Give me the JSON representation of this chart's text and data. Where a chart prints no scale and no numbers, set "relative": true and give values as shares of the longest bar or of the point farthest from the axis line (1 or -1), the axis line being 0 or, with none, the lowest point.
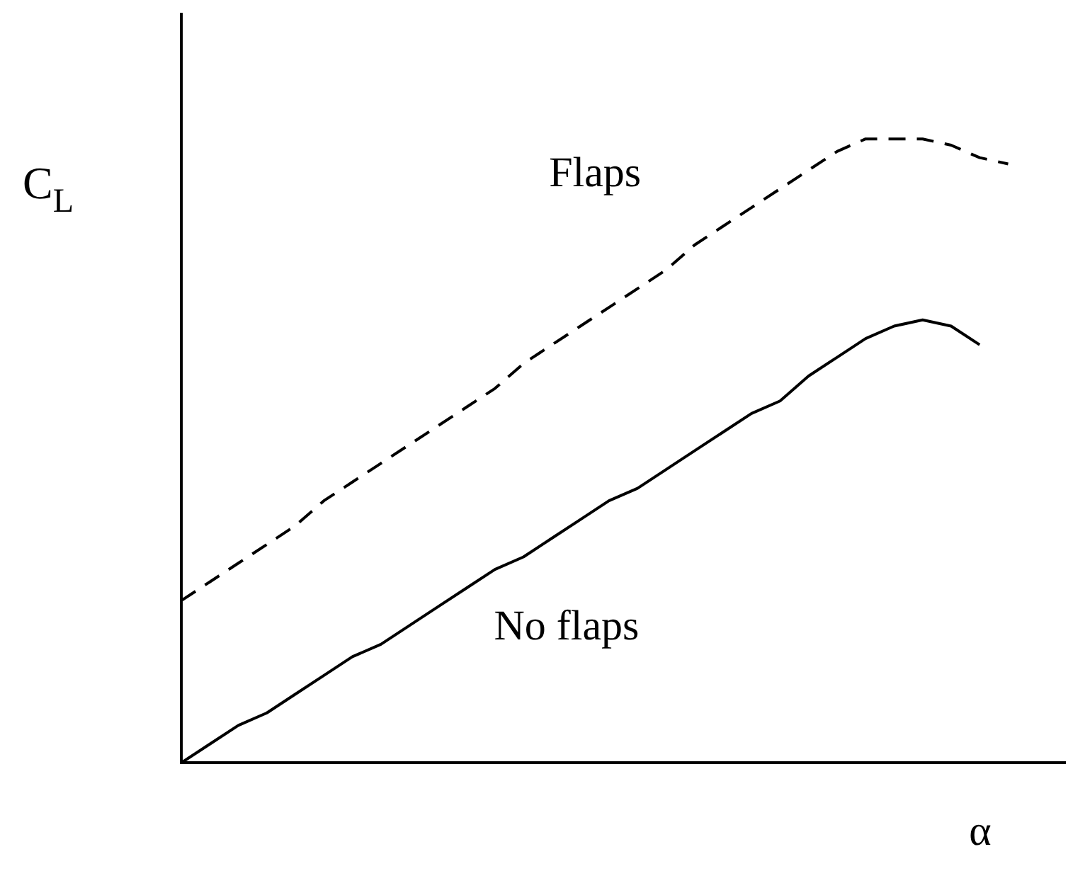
{
  "chart_data": {
    "type": "line",
    "relative": true,
    "xlabel": "α",
    "ylabel": "C$_{L}$",
    "grid": false,
    "legend": false,
    "marker": "none",
    "categories": [
      null,
      null,
      null,
      null,
      null,
      null,
      null,
      null,
      null,
      null,
      null,
      null,
      null,
      null,
      null,
      null,
      null,
      null,
      null,
      null,
      null,
      null,
      null,
      null,
      null,
      null,
      null,
      null,
      null,
      null,
      null,
      null
    ],
    "series": [
      {
        "name": "Flaps",
        "color": "#000000",
        "line_style": "dashed",
        "values": [
          0.26,
          0.29,
          0.32,
          0.35,
          0.38,
          0.42,
          0.45,
          0.48,
          0.51,
          0.54,
          0.57,
          0.6,
          0.64,
          0.67,
          0.7,
          0.73,
          0.76,
          0.79,
          0.83,
          0.86,
          0.89,
          0.92,
          0.95,
          0.98,
          1.0,
          1.0,
          1.0,
          0.99,
          0.97,
          0.96,
          null,
          null
        ]
      },
      {
        "name": "No flaps",
        "color": "#000000",
        "line_style": "solid",
        "values": [
          0,
          0.03,
          0.06,
          0.08,
          0.11,
          0.14,
          0.17,
          0.19,
          0.22,
          0.25,
          0.28,
          0.31,
          0.33,
          0.36,
          0.39,
          0.42,
          0.44,
          0.47,
          0.5,
          0.53,
          0.56,
          0.58,
          0.62,
          0.65,
          0.68,
          0.7,
          0.71,
          0.7,
          0.67,
          null,
          null,
          null
        ]
      }
    ]
  }
}
